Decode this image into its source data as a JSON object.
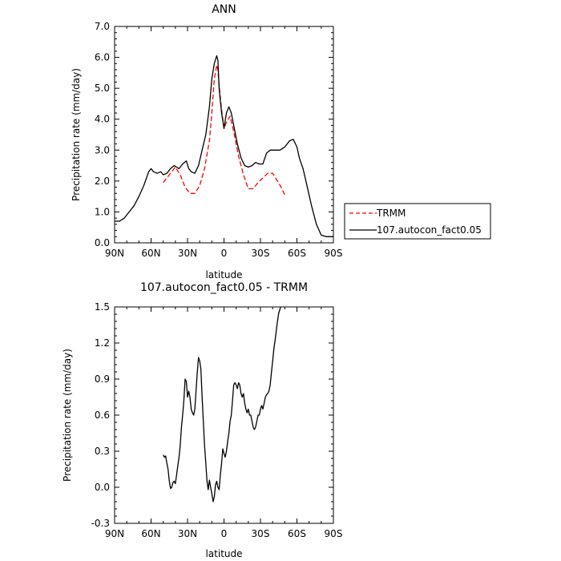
{
  "chart_data": [
    {
      "type": "line",
      "title": "ANN",
      "xlabel": "latitude",
      "ylabel": "Precipitation rate (mm/day)",
      "xlim": [
        90,
        -90
      ],
      "ylim": [
        0,
        7
      ],
      "x_ticks": [
        90,
        60,
        30,
        0,
        -30,
        -60,
        -90
      ],
      "x_tick_labels": [
        "90N",
        "60N",
        "30N",
        "0",
        "30S",
        "60S",
        "90S"
      ],
      "y_ticks": [
        0,
        1,
        2,
        3,
        4,
        5,
        6,
        7
      ],
      "y_tick_labels": [
        "0.0",
        "1.0",
        "2.0",
        "3.0",
        "4.0",
        "5.0",
        "6.0",
        "7.0"
      ],
      "legend": {
        "placement": "right",
        "entries": [
          "TRMM",
          "107.autocon_fact0.05"
        ]
      },
      "series": [
        {
          "name": "TRMM",
          "color": "#ff0000",
          "dash": "dashed",
          "x": [
            50,
            45,
            40,
            36,
            32,
            28,
            24,
            20,
            16,
            12,
            10,
            8,
            6,
            5,
            4,
            2,
            0,
            -2,
            -5,
            -8,
            -12,
            -16,
            -20,
            -24,
            -28,
            -32,
            -36,
            -40,
            -44,
            -47,
            -50
          ],
          "y": [
            1.95,
            2.2,
            2.45,
            2.2,
            1.8,
            1.6,
            1.6,
            1.85,
            2.4,
            3.3,
            4.2,
            5.3,
            5.75,
            5.6,
            5.1,
            4.3,
            3.7,
            3.9,
            4.1,
            3.6,
            2.8,
            2.2,
            1.75,
            1.75,
            1.95,
            2.1,
            2.25,
            2.25,
            2.0,
            1.8,
            1.55
          ]
        },
        {
          "name": "107.autocon_fact0.05",
          "color": "#000000",
          "dash": "solid",
          "x": [
            90,
            86,
            82,
            78,
            74,
            70,
            66,
            62,
            60,
            58,
            55,
            52,
            50,
            47,
            44,
            41,
            39,
            37,
            34,
            31,
            29,
            27,
            24,
            21,
            18,
            15,
            12,
            10,
            8,
            6,
            5,
            4,
            2,
            0,
            -2,
            -4,
            -6,
            -8,
            -11,
            -14,
            -17,
            -20,
            -23,
            -26,
            -29,
            -32,
            -35,
            -38,
            -42,
            -46,
            -50,
            -54,
            -57,
            -60,
            -62,
            -65,
            -68,
            -72,
            -76,
            -80,
            -84,
            -87,
            -90
          ],
          "y": [
            0.7,
            0.7,
            0.8,
            1.0,
            1.2,
            1.5,
            1.85,
            2.3,
            2.4,
            2.3,
            2.25,
            2.3,
            2.2,
            2.25,
            2.4,
            2.5,
            2.45,
            2.4,
            2.55,
            2.65,
            2.4,
            2.3,
            2.25,
            2.5,
            3.0,
            3.5,
            4.4,
            5.3,
            5.8,
            6.05,
            5.9,
            5.0,
            4.2,
            3.7,
            4.2,
            4.4,
            4.2,
            3.8,
            3.2,
            2.75,
            2.5,
            2.45,
            2.5,
            2.6,
            2.55,
            2.55,
            2.9,
            3.0,
            3.0,
            3.0,
            3.1,
            3.3,
            3.35,
            3.1,
            2.75,
            2.4,
            1.9,
            1.2,
            0.6,
            0.25,
            0.2,
            0.2,
            0.2
          ]
        }
      ]
    },
    {
      "type": "line",
      "title": "107.autocon_fact0.05 - TRMM",
      "xlabel": "latitude",
      "ylabel": "Precipitation rate (mm/day)",
      "xlim": [
        90,
        -90
      ],
      "ylim": [
        -0.3,
        1.5
      ],
      "x_ticks": [
        90,
        60,
        30,
        0,
        -30,
        -60,
        -90
      ],
      "x_tick_labels": [
        "90N",
        "60N",
        "30N",
        "0",
        "30S",
        "60S",
        "90S"
      ],
      "y_ticks": [
        -0.3,
        0,
        0.3,
        0.6,
        0.9,
        1.2,
        1.5
      ],
      "y_tick_labels": [
        "-0.3",
        "0.0",
        "0.3",
        "0.6",
        "0.9",
        "1.2",
        "1.5"
      ],
      "series": [
        {
          "color": "#000000",
          "dash": "solid",
          "x": [
            50,
            49,
            48,
            47,
            46,
            45,
            44,
            43,
            42,
            41,
            40,
            39,
            38,
            37,
            36,
            35,
            34,
            33,
            32,
            31,
            30,
            29,
            28,
            27,
            26,
            25,
            24,
            23,
            22,
            21,
            20,
            19,
            18,
            17,
            16,
            15,
            14,
            13,
            12,
            11,
            10,
            9,
            8,
            7,
            6,
            5,
            4,
            3,
            2,
            1,
            0,
            -1,
            -2,
            -3,
            -4,
            -5,
            -6,
            -7,
            -8,
            -9,
            -10,
            -11,
            -12,
            -13,
            -14,
            -15,
            -16,
            -17,
            -18,
            -19,
            -20,
            -21,
            -22,
            -23,
            -24,
            -25,
            -26,
            -27,
            -28,
            -29,
            -30,
            -31,
            -32,
            -33,
            -34,
            -35,
            -36,
            -37,
            -38,
            -39,
            -40,
            -41,
            -42,
            -43,
            -44,
            -45,
            -46,
            -47,
            -48,
            -49,
            -50
          ],
          "y": [
            0.27,
            0.25,
            0.26,
            0.2,
            0.15,
            0.05,
            -0.01,
            0.0,
            0.04,
            0.05,
            0.03,
            0.1,
            0.18,
            0.25,
            0.35,
            0.5,
            0.6,
            0.72,
            0.9,
            0.88,
            0.75,
            0.8,
            0.75,
            0.65,
            0.62,
            0.6,
            0.65,
            0.8,
            0.95,
            1.08,
            1.05,
            0.98,
            0.75,
            0.55,
            0.35,
            0.2,
            0.05,
            -0.02,
            0.06,
            0.0,
            -0.05,
            -0.12,
            -0.08,
            0.02,
            0.05,
            0.0,
            -0.02,
            0.1,
            0.2,
            0.32,
            0.28,
            0.25,
            0.3,
            0.38,
            0.45,
            0.55,
            0.6,
            0.72,
            0.85,
            0.87,
            0.85,
            0.82,
            0.87,
            0.85,
            0.78,
            0.75,
            0.78,
            0.7,
            0.65,
            0.62,
            0.65,
            0.6,
            0.6,
            0.55,
            0.5,
            0.48,
            0.5,
            0.55,
            0.6,
            0.6,
            0.65,
            0.68,
            0.65,
            0.7,
            0.75,
            0.77,
            0.78,
            0.8,
            0.85,
            0.95,
            1.05,
            1.15,
            1.22,
            1.3,
            1.38,
            1.45,
            1.48,
            1.52,
            1.56,
            1.6,
            1.65
          ]
        }
      ]
    }
  ]
}
